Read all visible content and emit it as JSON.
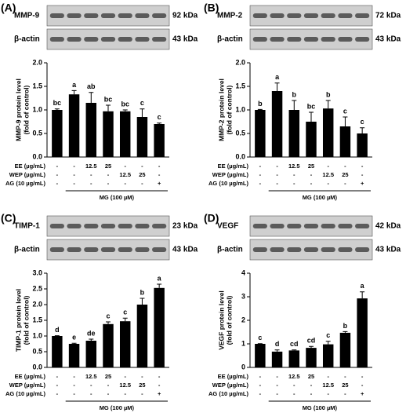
{
  "chart_data": [
    {
      "type": "bar",
      "panel": "(A)",
      "blot_labels": [
        {
          "protein": "MMP-9",
          "size": "92 kDa"
        },
        {
          "protein": "β-actin",
          "size": "43 kDa"
        }
      ],
      "ylabel": [
        "MMP-9 protein level",
        "(fold of control)"
      ],
      "categories": [
        null,
        null,
        null,
        null,
        null,
        null,
        null
      ],
      "values": [
        1.0,
        1.33,
        1.15,
        0.97,
        0.97,
        0.85,
        0.7
      ],
      "errors": [
        0.02,
        0.08,
        0.22,
        0.13,
        0.03,
        0.17,
        0.02
      ],
      "letters": [
        "bc",
        "a",
        "ab",
        "bc",
        "bc",
        "c",
        "c"
      ],
      "color": "#000000",
      "ylim": [
        0,
        2
      ],
      "yticks": [
        {
          "value": 0,
          "label": "0.0"
        },
        {
          "value": 0.5,
          "label": "0.5"
        },
        {
          "value": 1,
          "label": "1.0"
        },
        {
          "value": 1.5,
          "label": "1.5"
        },
        {
          "value": 2,
          "label": "2.0"
        }
      ],
      "treatments": [
        {
          "label": "EE (µg/mL)",
          "entries": [
            "-",
            "-",
            "12.5",
            "25",
            "-",
            "-",
            "-"
          ]
        },
        {
          "label": "WEP (µg/mL)",
          "entries": [
            "-",
            "-",
            "-",
            "-",
            "12.5",
            "25",
            "-"
          ]
        },
        {
          "label": "AG (10 µg/mL)",
          "entries": [
            "-",
            "-",
            "-",
            "-",
            "-",
            "-",
            "+"
          ]
        }
      ],
      "treatment_group": "MG (100 µM)"
    },
    {
      "type": "bar",
      "panel": "(B)",
      "blot_labels": [
        {
          "protein": "MMP-2",
          "size": "72 kDa"
        },
        {
          "protein": "β-actin",
          "size": "43 kDa"
        }
      ],
      "ylabel": [
        "MMP-2 protein level",
        "(fold of control)"
      ],
      "categories": [
        null,
        null,
        null,
        null,
        null,
        null,
        null
      ],
      "values": [
        1.0,
        1.4,
        1.0,
        0.75,
        1.03,
        0.65,
        0.5
      ],
      "errors": [
        0.01,
        0.17,
        0.2,
        0.2,
        0.17,
        0.2,
        0.12
      ],
      "letters": [
        "b",
        "a",
        "b",
        "bc",
        "b",
        "c",
        "c"
      ],
      "color": "#000000",
      "ylim": [
        0,
        2
      ],
      "yticks": [
        {
          "value": 0,
          "label": "0.0"
        },
        {
          "value": 0.5,
          "label": "0.5"
        },
        {
          "value": 1,
          "label": "1.0"
        },
        {
          "value": 1.5,
          "label": "1.5"
        },
        {
          "value": 2,
          "label": "2.0"
        }
      ],
      "treatments": [
        {
          "label": "EE (µg/mL)",
          "entries": [
            "-",
            "-",
            "12.5",
            "25",
            "-",
            "-",
            "-"
          ]
        },
        {
          "label": "WEP (µg/mL)",
          "entries": [
            "-",
            "-",
            "-",
            "-",
            "12.5",
            "25",
            "-"
          ]
        },
        {
          "label": "AG (10 µg/mL)",
          "entries": [
            "-",
            "-",
            "-",
            "-",
            "-",
            "-",
            "+"
          ]
        }
      ],
      "treatment_group": "MG (100 µM)"
    },
    {
      "type": "bar",
      "panel": "(C)",
      "blot_labels": [
        {
          "protein": "TIMP-1",
          "size": "23 kDa"
        },
        {
          "protein": "β-actin",
          "size": "43 kDa"
        }
      ],
      "ylabel": [
        "TIMP-1 protein level",
        "(fold of control)"
      ],
      "categories": [
        null,
        null,
        null,
        null,
        null,
        null,
        null
      ],
      "values": [
        1.0,
        0.75,
        0.85,
        1.38,
        1.47,
        2.0,
        2.53
      ],
      "errors": [
        0.01,
        0.02,
        0.05,
        0.07,
        0.1,
        0.2,
        0.12
      ],
      "letters": [
        "d",
        "e",
        "de",
        "c",
        "c",
        "b",
        "a"
      ],
      "color": "#000000",
      "ylim": [
        0,
        3
      ],
      "yticks": [
        {
          "value": 0,
          "label": "0.0"
        },
        {
          "value": 0.5,
          "label": "0.5"
        },
        {
          "value": 1,
          "label": "1.0"
        },
        {
          "value": 1.5,
          "label": "1.5"
        },
        {
          "value": 2,
          "label": "2.0"
        },
        {
          "value": 2.5,
          "label": "2.5"
        },
        {
          "value": 3,
          "label": "3.0"
        }
      ],
      "treatments": [
        {
          "label": "EE (µg/mL)",
          "entries": [
            "-",
            "-",
            "12.5",
            "25",
            "-",
            "-",
            "-"
          ]
        },
        {
          "label": "WEP (µg/mL)",
          "entries": [
            "-",
            "-",
            "-",
            "-",
            "12.5",
            "25",
            "-"
          ]
        },
        {
          "label": "AG (10 µg/mL)",
          "entries": [
            "-",
            "-",
            "-",
            "-",
            "-",
            "-",
            "+"
          ]
        }
      ],
      "treatment_group": "MG (100 µM)"
    },
    {
      "type": "bar",
      "panel": "(D)",
      "blot_labels": [
        {
          "protein": "VEGF",
          "size": "42 kDa"
        },
        {
          "protein": "β-actin",
          "size": "43 kDa"
        }
      ],
      "ylabel": [
        "VEGF protein level",
        "(fold of control)"
      ],
      "categories": [
        null,
        null,
        null,
        null,
        null,
        null,
        null
      ],
      "values": [
        1.0,
        0.67,
        0.72,
        0.83,
        0.98,
        1.47,
        2.93
      ],
      "errors": [
        0.01,
        0.07,
        0.02,
        0.06,
        0.13,
        0.05,
        0.28
      ],
      "letters": [
        "c",
        "d",
        "cd",
        "cd",
        "c",
        "b",
        "a"
      ],
      "color": "#000000",
      "ylim": [
        0,
        4
      ],
      "yticks": [
        0,
        1,
        2,
        3,
        4
      ],
      "treatments": [
        {
          "label": "EE (µg/mL)",
          "entries": [
            "-",
            "-",
            "12.5",
            "25",
            "-",
            "-",
            "-"
          ]
        },
        {
          "label": "WEP (µg/mL)",
          "entries": [
            "-",
            "-",
            "-",
            "-",
            "12.5",
            "25",
            "-"
          ]
        },
        {
          "label": "AG (10 µg/mL)",
          "entries": [
            "-",
            "-",
            "-",
            "-",
            "-",
            "-",
            "+"
          ]
        }
      ],
      "treatment_group": "MG (100 µM)"
    }
  ]
}
